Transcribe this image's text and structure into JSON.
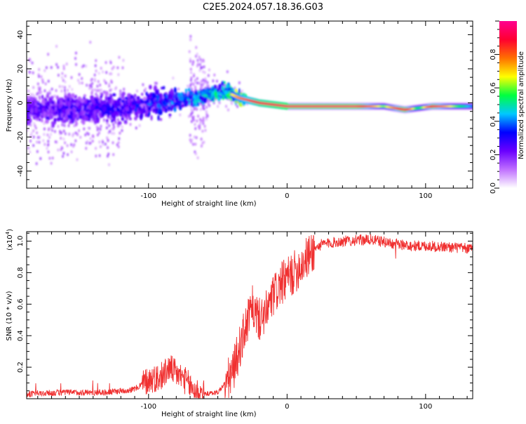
{
  "title": "C2E5.2024.057.18.36.G03",
  "chart_data": [
    {
      "type": "heatmap",
      "xlabel": "Height of straight line (km)",
      "ylabel": "Frequency (Hz)",
      "xlim": [
        -188,
        134
      ],
      "ylim": [
        -50,
        48
      ],
      "x_ticks": [
        -100,
        0,
        100
      ],
      "y_ticks": [
        -40,
        -20,
        0,
        20,
        40
      ],
      "colorbar": {
        "label": "Normalized spectral amplitude",
        "range": [
          0,
          1
        ],
        "ticks": [
          0.0,
          0.2,
          0.4,
          0.6,
          0.8
        ],
        "colors": [
          "#ffffff",
          "#c070ff",
          "#6a00ff",
          "#0000ff",
          "#00c8ff",
          "#00ff40",
          "#ffff00",
          "#ff7000",
          "#ff0030",
          "#ff0090"
        ]
      },
      "ridge": [
        {
          "x": -188,
          "freq": -4,
          "amp": 0.3
        },
        {
          "x": -150,
          "freq": -4,
          "amp": 0.32
        },
        {
          "x": -120,
          "freq": -3,
          "amp": 0.34
        },
        {
          "x": -100,
          "freq": -1,
          "amp": 0.38
        },
        {
          "x": -80,
          "freq": 1,
          "amp": 0.45
        },
        {
          "x": -60,
          "freq": 4,
          "amp": 0.5
        },
        {
          "x": -45,
          "freq": 7,
          "amp": 0.55
        },
        {
          "x": -35,
          "freq": 3,
          "amp": 0.75
        },
        {
          "x": -20,
          "freq": 0,
          "amp": 0.9
        },
        {
          "x": 0,
          "freq": -2,
          "amp": 0.95
        },
        {
          "x": 50,
          "freq": -2,
          "amp": 0.97
        },
        {
          "x": 70,
          "freq": -2,
          "amp": 0.6
        },
        {
          "x": 85,
          "freq": -4,
          "amp": 0.95
        },
        {
          "x": 95,
          "freq": -3,
          "amp": 0.5
        },
        {
          "x": 105,
          "freq": -2,
          "amp": 0.9
        },
        {
          "x": 134,
          "freq": -2,
          "amp": 0.4
        }
      ]
    },
    {
      "type": "line",
      "xlabel": "Height of straight line (km)",
      "ylabel": "SNR (10 * v/v)",
      "y_multiplier": "(x10",
      "y_multiplier_exp": "4",
      "xlim": [
        -188,
        134
      ],
      "ylim": [
        0,
        1.06
      ],
      "x_ticks": [
        -100,
        0,
        100
      ],
      "y_ticks": [
        0.2,
        0.4,
        0.6,
        0.8,
        1.0
      ],
      "line_color": "#f03030",
      "series": [
        {
          "x": [
            -188,
            -160,
            -130,
            -110,
            -100,
            -90,
            -85,
            -80,
            -75,
            -68,
            -60,
            -50,
            -40,
            -35,
            -30,
            -25,
            -20,
            -15,
            -10,
            -5,
            0,
            5,
            10,
            15,
            20,
            25,
            40,
            60,
            80,
            90,
            100,
            120,
            134
          ],
          "y": [
            0.03,
            0.04,
            0.04,
            0.06,
            0.12,
            0.14,
            0.2,
            0.16,
            0.13,
            0.06,
            0.03,
            0.04,
            0.15,
            0.3,
            0.45,
            0.58,
            0.5,
            0.55,
            0.65,
            0.72,
            0.76,
            0.8,
            0.85,
            0.9,
            0.95,
            0.98,
            1.0,
            1.01,
            0.98,
            0.97,
            0.97,
            0.96,
            0.95
          ]
        }
      ]
    }
  ]
}
